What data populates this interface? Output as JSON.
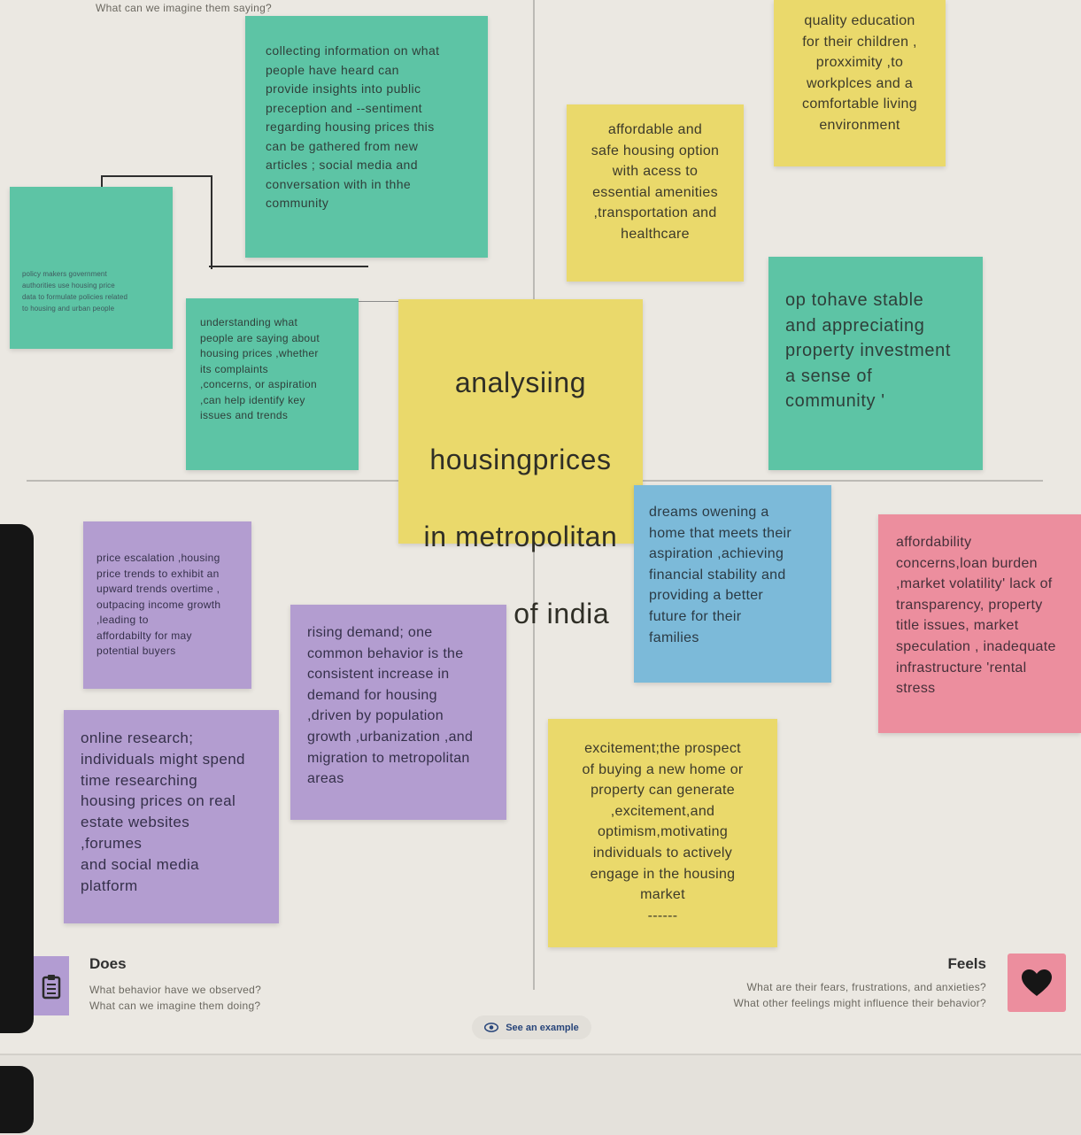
{
  "board": {
    "top_hint": "What can we imagine them saying?",
    "center": {
      "line1": "analysiing",
      "line2": "housingprices",
      "line3": "in metropolitan",
      "line4": "areas of india"
    },
    "notes": {
      "says_collecting": "collecting information on what\npeople have heard can\nprovide insights into  public\npreception and --sentiment\nregarding housing prices this\ncan be gathered from new\narticles ; social media and\nconversation with in thhe\ncommunity",
      "says_policy": "policy makers government\nauthorities use housing price\ndata to formulate policies related\nto housing and urban people",
      "says_understanding": "understanding what\npeople are saying about\nhousing prices ,whether\nits complaints\n,concerns, or aspiration\n,can help identify key\nissues and trends",
      "thinks_affordable": "affordable  and\nsafe housing  option\nwith acess to\nessential amenities\n,transportation and\nhealthcare",
      "thinks_quality": "quality education\nfor their children ,\nproxximity ,to\nworkplces and a\ncomfortable living\nenvironment",
      "thinks_stable": "op tohave stable\nand appreciating\nproperty investment\na sense of\ncommunity '",
      "does_price": "price escalation ,housing\nprice trends to exhibit an\nupward trends  overtime ,\noutpacing income growth\n,leading to\n  affordabilty   for may\npotential buyers",
      "does_rising": "rising demand; one\ncommon  behavior is the\nconsistent increase in\ndemand for housing\n,driven by population\ngrowth ,urbanization ,and\nmigration to metropolitan\nareas",
      "does_online": "online research;\nindividuals might spend\ntime researching\nhousing prices on real\nestate websites\n,forumes\n and social media\nplatform",
      "feels_dreams": "dreams owening a\nhome that meets their\n   aspiration ,achieving\nfinancial stability and\nproviding a better\nfuture for  their\nfamilies",
      "feels_affordability": "affordability\n concerns,loan burden\n,market volatility' lack of\ntransparency, property\n title issues, market\nspeculation , inadequate\ninfrastructure 'rental\nstress",
      "feels_excitement": "excitement;the prospect\nof buying a new home or\nproperty can generate\n,excitement,and\noptimism,motivating\nindividuals to actively\nengage in the housing\nmarket\n------"
    },
    "does_section": {
      "label": "Does",
      "help1": "What behavior have we observed?",
      "help2": "What can we imagine them doing?"
    },
    "feels_section": {
      "label": "Feels",
      "help1": "What are their fears, frustrations, and anxieties?",
      "help2": "What other feelings might influence their behavior?"
    },
    "see_example": "See an example",
    "icons": {
      "does": "clipboard-icon",
      "feels": "heart-icon",
      "see_example": "eye-icon"
    },
    "colors": {
      "teal": "#5dc4a5",
      "yellow": "#ead96b",
      "purple": "#b39dd0",
      "blue": "#7cbad9",
      "pink": "#ec8e9e"
    }
  }
}
